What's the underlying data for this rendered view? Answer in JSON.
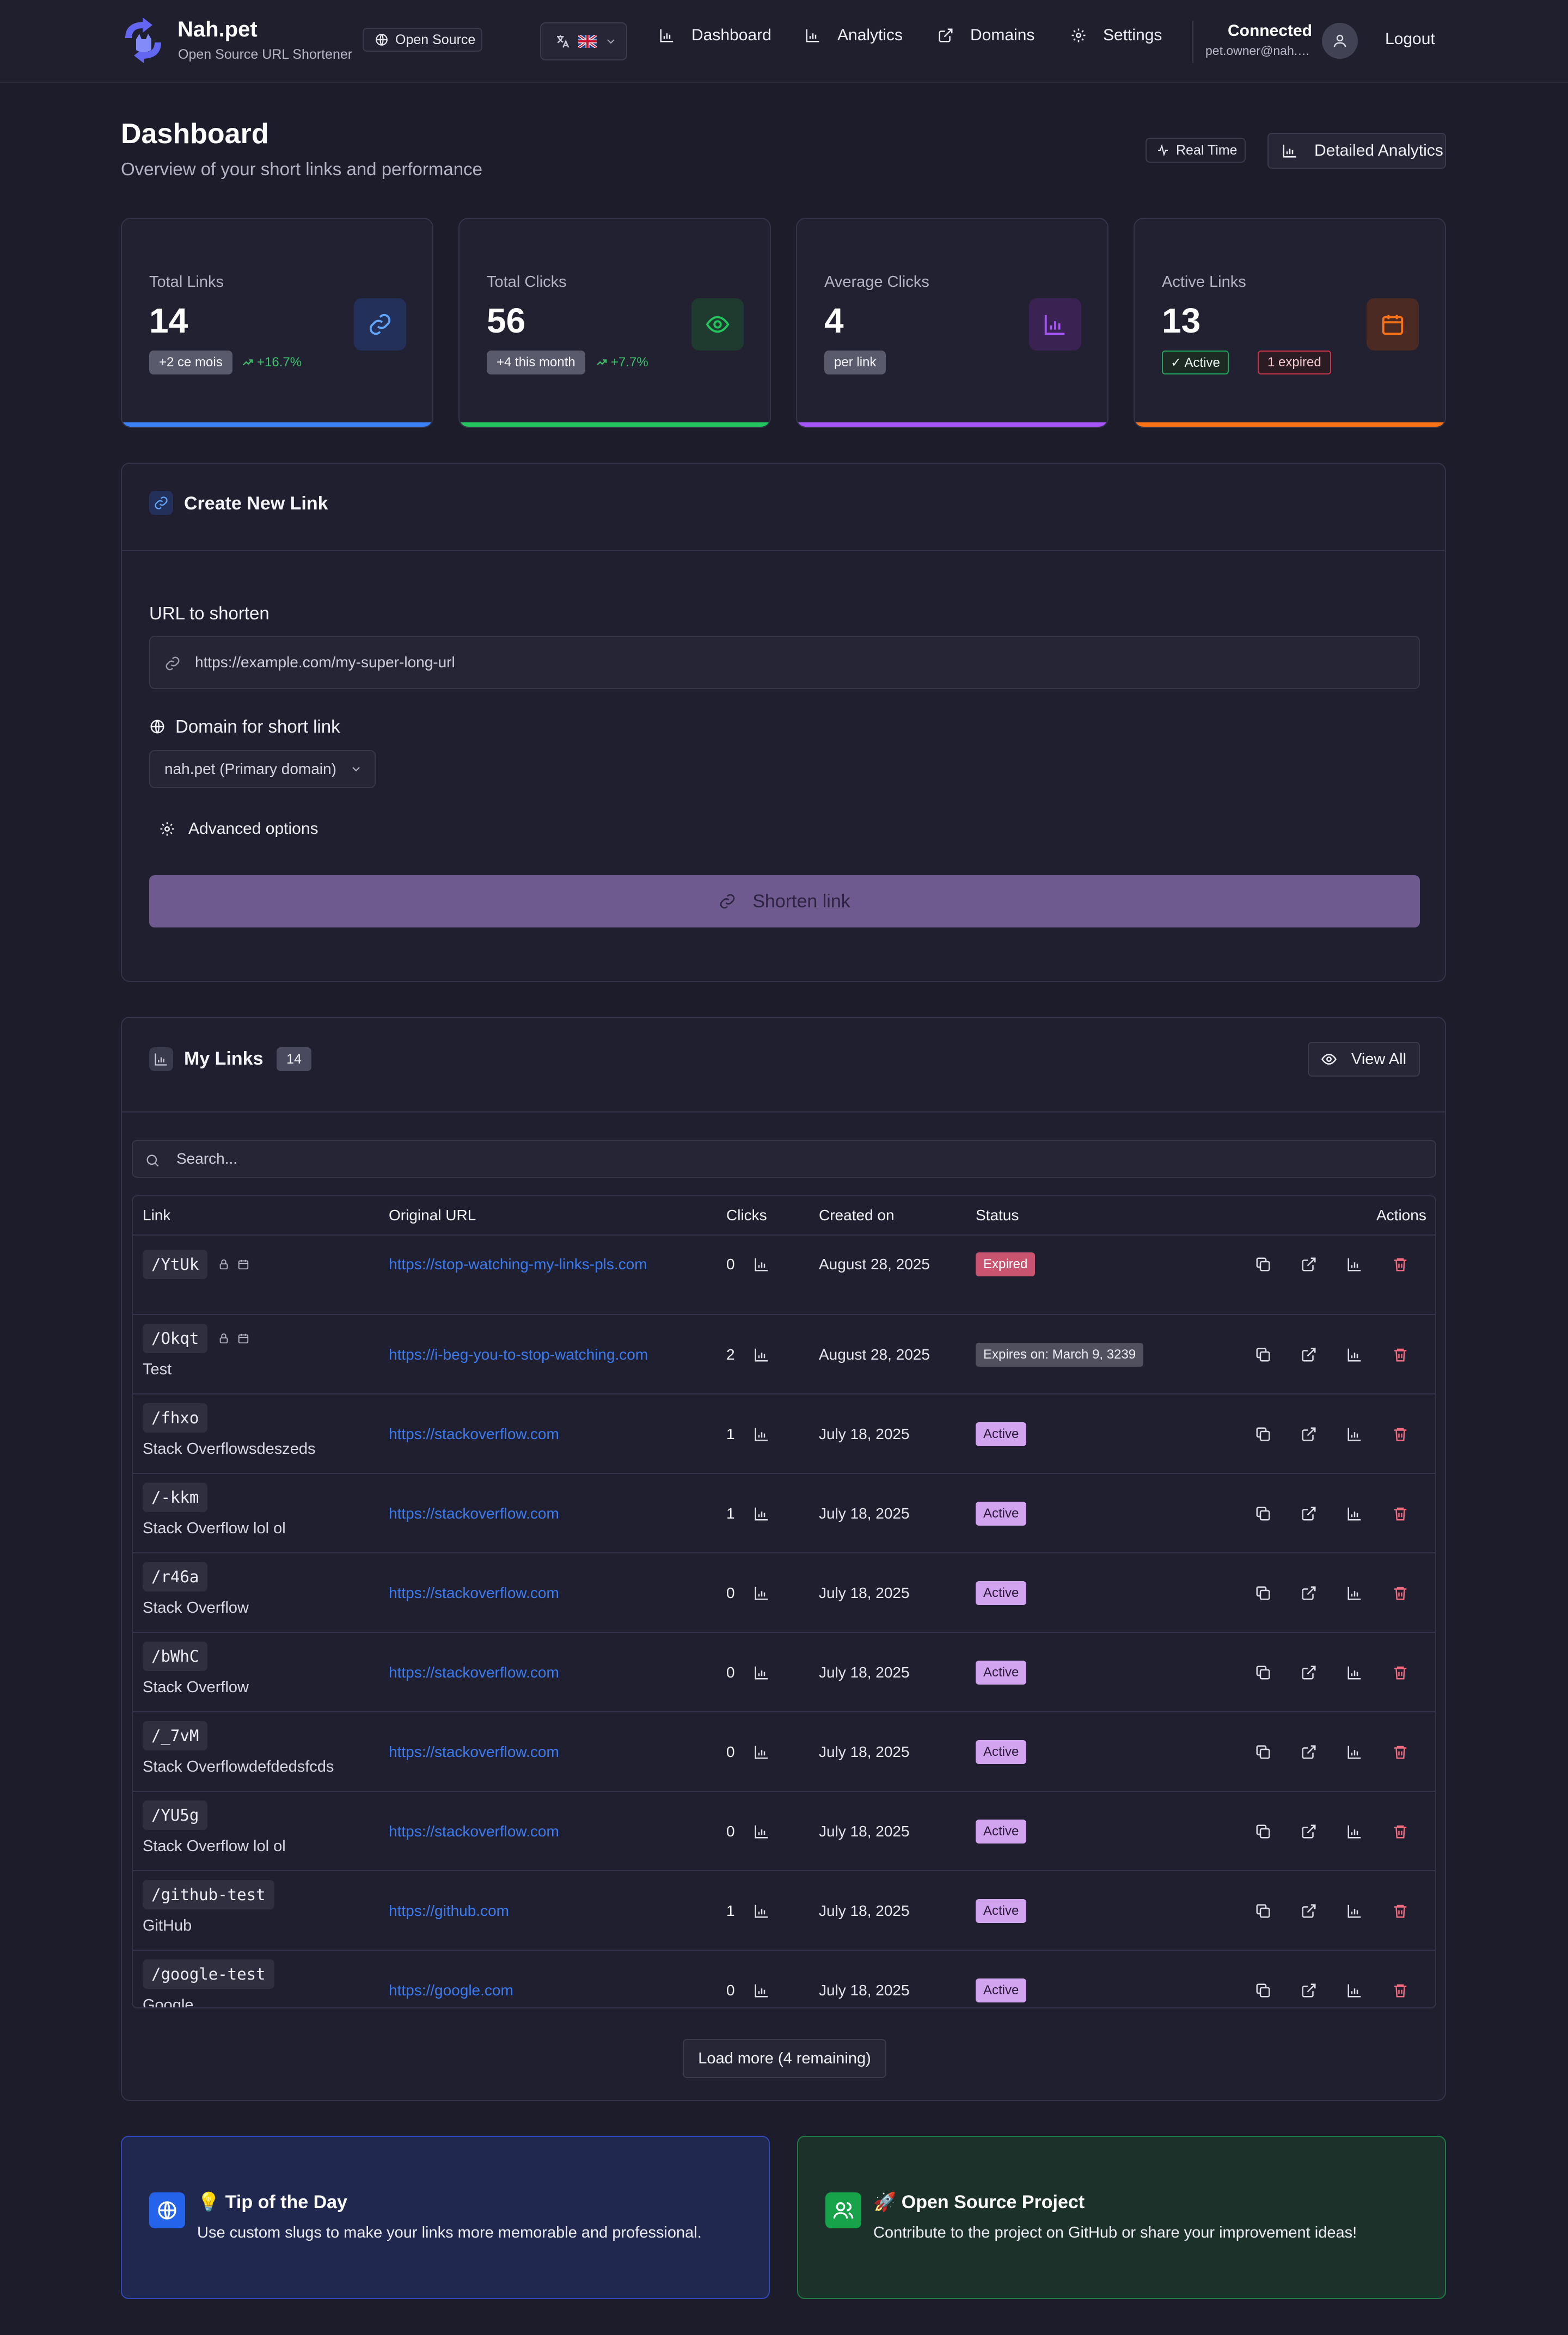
{
  "app": {
    "name": "Nah.pet",
    "tagline": "Open Source URL Shortener",
    "os_badge": "Open Source"
  },
  "nav": {
    "items": [
      {
        "label": "Dashboard",
        "icon": "bar-chart-icon"
      },
      {
        "label": "Analytics",
        "icon": "bar-chart-icon"
      },
      {
        "label": "Domains",
        "icon": "external-link-icon"
      },
      {
        "label": "Settings",
        "icon": "gear-icon"
      }
    ],
    "language_flag": "uk-flag-icon"
  },
  "user": {
    "status": "Connected",
    "email": "pet.owner@nah.pet",
    "logout_label": "Logout"
  },
  "header": {
    "title": "Dashboard",
    "subtitle": "Overview of your short links and performance",
    "realtime_label": "Real Time",
    "detailed_label": "Detailed Analytics"
  },
  "stats": [
    {
      "label": "Total Links",
      "value": "14",
      "pill": "+2 ce mois",
      "trend": "+16.7%",
      "color": "#3b82f6"
    },
    {
      "label": "Total Clicks",
      "value": "56",
      "pill": "+4 this month",
      "trend": "+7.7%",
      "color": "#22c55e"
    },
    {
      "label": "Average Clicks",
      "value": "4",
      "pill": "per link",
      "color": "#a855f7"
    },
    {
      "label": "Active Links",
      "value": "13",
      "active_pill": "✓ Active",
      "expired_pill": "1 expired",
      "color": "#f97316"
    }
  ],
  "create": {
    "title": "Create New Link",
    "url_label": "URL to shorten",
    "url_placeholder": "https://example.com/my-super-long-url",
    "domain_label": "Domain for short link",
    "domain_value": "nah.pet (Primary domain)",
    "advanced_label": "Advanced options",
    "submit_label": "Shorten link"
  },
  "links": {
    "title": "My Links",
    "count": "14",
    "view_all_label": "View All",
    "search_placeholder": "Search...",
    "columns": [
      "Link",
      "Original URL",
      "Clicks",
      "Created on",
      "Status",
      "Actions"
    ],
    "rows": [
      {
        "slug": "/YtUk",
        "desc": "",
        "url": "https://stop-watching-my-links-pls.com",
        "clicks": "0",
        "created": "August 28, 2025",
        "status": "Expired",
        "status_type": "expired",
        "locked": true
      },
      {
        "slug": "/Okqt",
        "desc": "Test",
        "url": "https://i-beg-you-to-stop-watching.com",
        "clicks": "2",
        "created": "August 28, 2025",
        "status": "Expires on: March 9, 3239",
        "status_type": "expires",
        "locked": true
      },
      {
        "slug": "/fhxo",
        "desc": "Stack Overflowsdeszeds",
        "url": "https://stackoverflow.com",
        "clicks": "1",
        "created": "July 18, 2025",
        "status": "Active",
        "status_type": "active"
      },
      {
        "slug": "/-kkm",
        "desc": "Stack Overflow lol ol",
        "url": "https://stackoverflow.com",
        "clicks": "1",
        "created": "July 18, 2025",
        "status": "Active",
        "status_type": "active"
      },
      {
        "slug": "/r46a",
        "desc": "Stack Overflow",
        "url": "https://stackoverflow.com",
        "clicks": "0",
        "created": "July 18, 2025",
        "status": "Active",
        "status_type": "active"
      },
      {
        "slug": "/bWhC",
        "desc": "Stack Overflow",
        "url": "https://stackoverflow.com",
        "clicks": "0",
        "created": "July 18, 2025",
        "status": "Active",
        "status_type": "active"
      },
      {
        "slug": "/_7vM",
        "desc": "Stack Overflowdefdedsfcds",
        "url": "https://stackoverflow.com",
        "clicks": "0",
        "created": "July 18, 2025",
        "status": "Active",
        "status_type": "active"
      },
      {
        "slug": "/YU5g",
        "desc": "Stack Overflow lol ol",
        "url": "https://stackoverflow.com",
        "clicks": "0",
        "created": "July 18, 2025",
        "status": "Active",
        "status_type": "active"
      },
      {
        "slug": "/github-test",
        "desc": "GitHub",
        "url": "https://github.com",
        "clicks": "1",
        "created": "July 18, 2025",
        "status": "Active",
        "status_type": "active"
      },
      {
        "slug": "/google-test",
        "desc": "Google",
        "url": "https://google.com",
        "clicks": "0",
        "created": "July 18, 2025",
        "status": "Active",
        "status_type": "active"
      }
    ],
    "load_more_label": "Load more (4 remaining)"
  },
  "tips": {
    "tip_title": "💡 Tip of the Day",
    "tip_text": "Use custom slugs to make your links more memorable and professional.",
    "os_title": "🚀 Open Source Project",
    "os_text": "Contribute to the project on GitHub or share your improvement ideas!"
  }
}
